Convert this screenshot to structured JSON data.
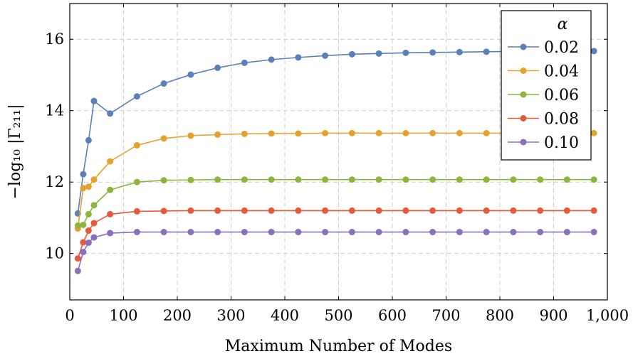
{
  "chart_data": {
    "type": "line",
    "xlabel": "Maximum Number of Modes",
    "ylabel": "−log₁₀ |Γ₂₁₁|",
    "xlim": [
      0,
      1000
    ],
    "ylim": [
      8.7,
      17.0
    ],
    "xticks": [
      0,
      100,
      200,
      300,
      400,
      500,
      600,
      700,
      800,
      900,
      1000
    ],
    "xtick_labels": [
      "0",
      "100",
      "200",
      "300",
      "400",
      "500",
      "600",
      "700",
      "800",
      "900",
      "1,000"
    ],
    "yticks": [
      10,
      12,
      14,
      16
    ],
    "ytick_labels": [
      "10",
      "12",
      "14",
      "16"
    ],
    "grid": true,
    "legend": {
      "title": "α",
      "position": "top-right"
    },
    "x": [
      15,
      25,
      35,
      45,
      75,
      125,
      175,
      225,
      275,
      325,
      375,
      425,
      475,
      525,
      575,
      625,
      675,
      725,
      775,
      825,
      875,
      925,
      975
    ],
    "series": [
      {
        "name": "0.02",
        "color": "#5b7fb8",
        "values": [
          11.12,
          12.22,
          13.17,
          14.27,
          13.92,
          14.4,
          14.76,
          15.01,
          15.2,
          15.34,
          15.43,
          15.49,
          15.54,
          15.58,
          15.6,
          15.62,
          15.63,
          15.64,
          15.65,
          15.66,
          15.66,
          15.67,
          15.67
        ]
      },
      {
        "name": "0.04",
        "color": "#e4a22b",
        "values": [
          10.7,
          11.83,
          11.87,
          12.07,
          12.58,
          13.03,
          13.22,
          13.3,
          13.33,
          13.35,
          13.36,
          13.36,
          13.37,
          13.37,
          13.37,
          13.37,
          13.37,
          13.37,
          13.37,
          13.37,
          13.37,
          13.37,
          13.37
        ]
      },
      {
        "name": "0.06",
        "color": "#8db53b",
        "values": [
          10.78,
          10.8,
          11.1,
          11.35,
          11.78,
          12.0,
          12.05,
          12.06,
          12.07,
          12.07,
          12.07,
          12.07,
          12.07,
          12.07,
          12.07,
          12.07,
          12.07,
          12.07,
          12.07,
          12.07,
          12.07,
          12.07,
          12.07
        ]
      },
      {
        "name": "0.08",
        "color": "#e45a3a",
        "values": [
          9.86,
          10.31,
          10.64,
          10.85,
          11.1,
          11.18,
          11.19,
          11.2,
          11.2,
          11.2,
          11.2,
          11.2,
          11.2,
          11.2,
          11.2,
          11.2,
          11.2,
          11.2,
          11.2,
          11.2,
          11.2,
          11.2,
          11.2
        ]
      },
      {
        "name": "0.10",
        "color": "#8a70b8",
        "values": [
          9.51,
          10.04,
          10.3,
          10.45,
          10.57,
          10.6,
          10.6,
          10.6,
          10.6,
          10.6,
          10.6,
          10.6,
          10.6,
          10.6,
          10.6,
          10.6,
          10.6,
          10.6,
          10.6,
          10.6,
          10.6,
          10.6,
          10.6
        ]
      }
    ]
  }
}
